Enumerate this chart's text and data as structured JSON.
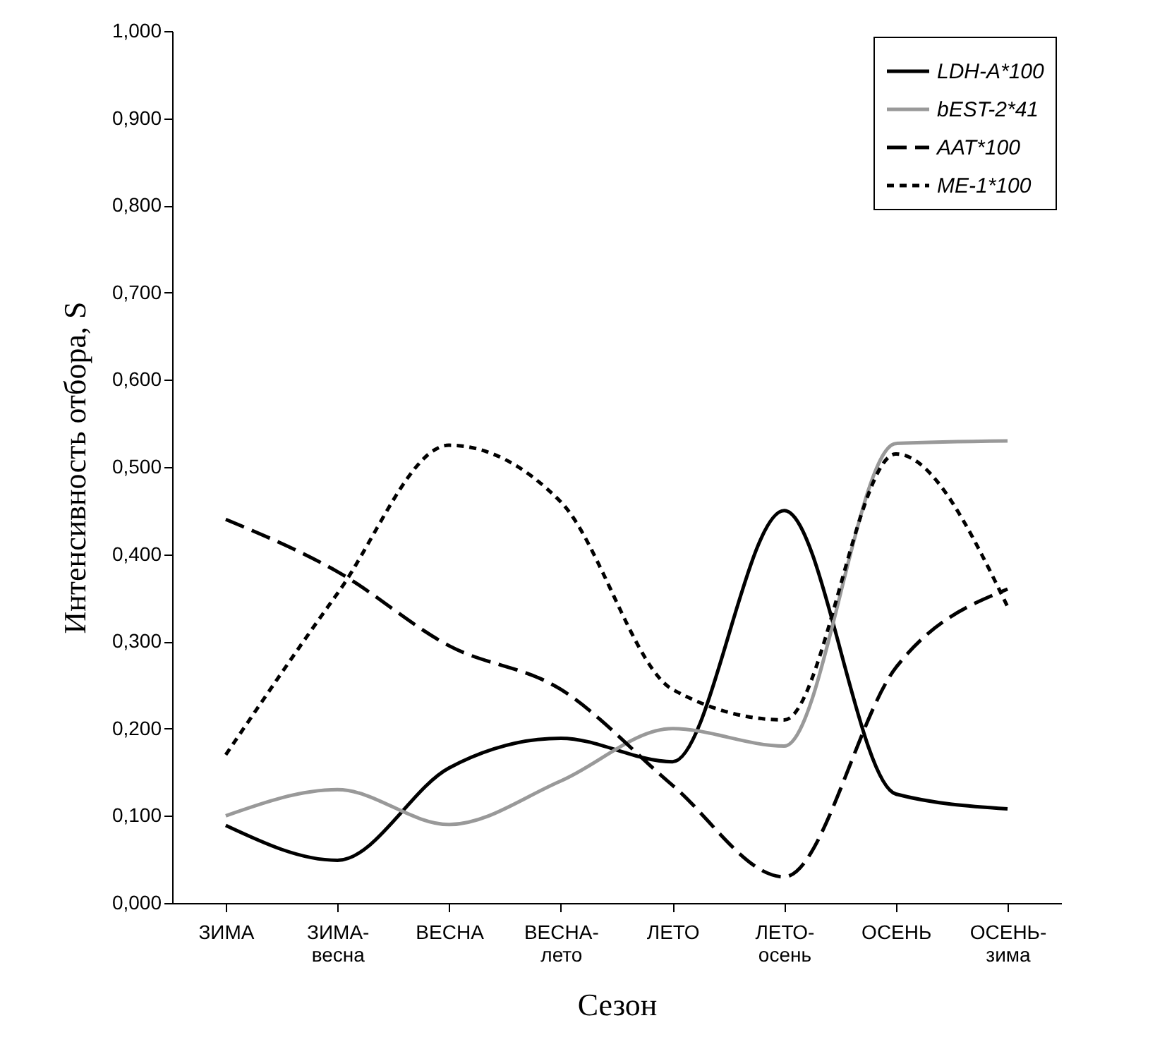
{
  "chart_data": {
    "type": "line",
    "xlabel": "Сезон",
    "ylabel": "Интенсивность отбора, S",
    "categories": [
      "ЗИМА",
      "ЗИМА-\nвесна",
      "ВЕСНА",
      "ВЕСНА-\nлето",
      "ЛЕТО",
      "ЛЕТО-\nосень",
      "ОСЕНЬ",
      "ОСЕНЬ-\nзима"
    ],
    "series": [
      {
        "name": "LDH-A*100",
        "color": "#000000",
        "line_style": "solid",
        "values": [
          0.089,
          0.049,
          0.155,
          0.189,
          0.162,
          0.45,
          0.125,
          0.108
        ]
      },
      {
        "name": "bEST-2*41",
        "color": "#999999",
        "line_style": "solid",
        "values": [
          0.1,
          0.13,
          0.09,
          0.14,
          0.2,
          0.18,
          0.527,
          0.53
        ]
      },
      {
        "name": "AAT*100",
        "color": "#000000",
        "line_style": "dashed",
        "values": [
          0.44,
          0.38,
          0.295,
          0.245,
          0.135,
          0.03,
          0.27,
          0.36
        ]
      },
      {
        "name": "ME-1*100",
        "color": "#000000",
        "line_style": "dotted",
        "values": [
          0.17,
          0.355,
          0.525,
          0.46,
          0.245,
          0.21,
          0.515,
          0.34
        ]
      }
    ],
    "ylim": [
      0,
      1
    ],
    "yticks": [
      {
        "value": 0,
        "label": "0,000"
      },
      {
        "value": 0.1,
        "label": "0,100"
      },
      {
        "value": 0.2,
        "label": "0,200"
      },
      {
        "value": 0.3,
        "label": "0,300"
      },
      {
        "value": 0.4,
        "label": "0,400"
      },
      {
        "value": 0.5,
        "label": "0,500"
      },
      {
        "value": 0.6,
        "label": "0,600"
      },
      {
        "value": 0.7,
        "label": "0,700"
      },
      {
        "value": 0.8,
        "label": "0,800"
      },
      {
        "value": 0.9,
        "label": "0,900"
      },
      {
        "value": 1,
        "label": "1,000"
      }
    ],
    "grid": false,
    "legend": "top right",
    "marker": "none"
  }
}
